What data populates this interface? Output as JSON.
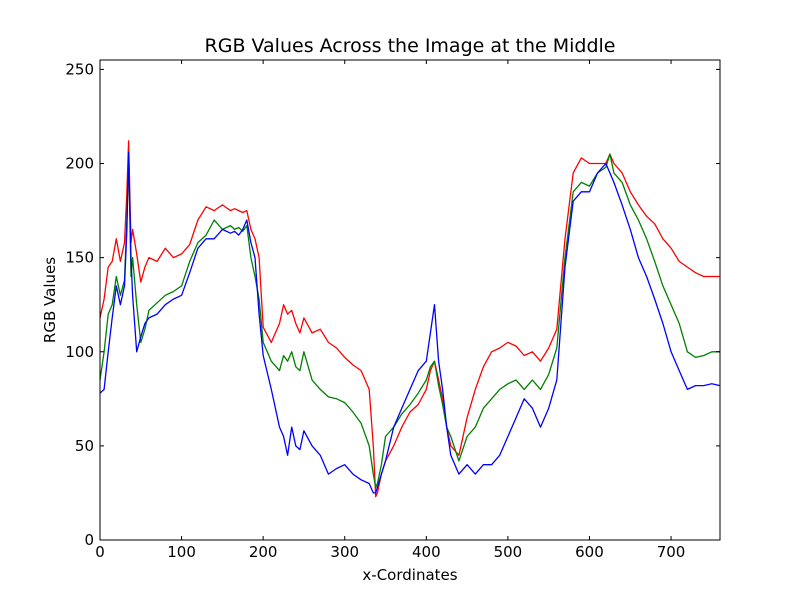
{
  "chart_data": {
    "type": "line",
    "title": "RGB Values Across the Image at the Middle",
    "xlabel": "x-Cordinates",
    "ylabel": "RGB Values",
    "xlim": [
      0,
      760
    ],
    "ylim": [
      0,
      255
    ],
    "xticks": [
      0,
      100,
      200,
      300,
      400,
      500,
      600,
      700
    ],
    "yticks": [
      0,
      50,
      100,
      150,
      200,
      250
    ],
    "grid": false,
    "series": [
      {
        "name": "Red",
        "color": "#ff0000",
        "x": [
          0,
          5,
          10,
          15,
          20,
          25,
          30,
          33,
          35,
          38,
          40,
          45,
          50,
          55,
          60,
          70,
          80,
          90,
          100,
          110,
          120,
          130,
          140,
          150,
          160,
          165,
          170,
          175,
          180,
          185,
          190,
          195,
          200,
          210,
          220,
          225,
          230,
          235,
          240,
          245,
          250,
          260,
          270,
          280,
          290,
          300,
          310,
          320,
          330,
          335,
          338,
          340,
          345,
          350,
          360,
          370,
          380,
          390,
          400,
          405,
          410,
          415,
          420,
          425,
          430,
          440,
          450,
          460,
          470,
          480,
          490,
          500,
          510,
          520,
          530,
          540,
          550,
          560,
          570,
          580,
          590,
          600,
          610,
          620,
          625,
          630,
          640,
          650,
          660,
          670,
          680,
          690,
          700,
          710,
          720,
          730,
          740,
          750,
          760
        ],
        "y": [
          118,
          128,
          145,
          148,
          160,
          148,
          158,
          185,
          212,
          158,
          165,
          152,
          137,
          145,
          150,
          148,
          155,
          150,
          152,
          157,
          170,
          177,
          175,
          178,
          175,
          176,
          175,
          174,
          175,
          165,
          160,
          150,
          113,
          105,
          115,
          125,
          120,
          122,
          115,
          110,
          118,
          110,
          112,
          105,
          102,
          97,
          93,
          90,
          80,
          50,
          23,
          25,
          35,
          42,
          50,
          60,
          68,
          72,
          80,
          90,
          95,
          85,
          75,
          60,
          50,
          45,
          65,
          80,
          92,
          100,
          102,
          105,
          103,
          98,
          100,
          95,
          102,
          112,
          160,
          195,
          203,
          200,
          200,
          200,
          205,
          200,
          195,
          185,
          178,
          172,
          168,
          160,
          155,
          148,
          145,
          142,
          140,
          140,
          140
        ]
      },
      {
        "name": "Green",
        "color": "#008000",
        "x": [
          0,
          5,
          10,
          15,
          20,
          25,
          30,
          33,
          35,
          38,
          40,
          45,
          50,
          55,
          60,
          70,
          80,
          90,
          100,
          110,
          120,
          130,
          140,
          150,
          160,
          165,
          170,
          175,
          180,
          185,
          190,
          195,
          200,
          210,
          220,
          225,
          230,
          235,
          240,
          245,
          250,
          260,
          270,
          280,
          290,
          300,
          310,
          320,
          330,
          335,
          338,
          340,
          345,
          350,
          360,
          370,
          380,
          390,
          400,
          405,
          410,
          415,
          420,
          425,
          430,
          440,
          450,
          460,
          470,
          480,
          490,
          500,
          510,
          520,
          530,
          540,
          550,
          560,
          570,
          580,
          590,
          600,
          610,
          620,
          625,
          630,
          640,
          650,
          660,
          670,
          680,
          690,
          700,
          710,
          720,
          730,
          740,
          750,
          760
        ],
        "y": [
          85,
          100,
          120,
          125,
          140,
          130,
          138,
          170,
          204,
          140,
          150,
          125,
          105,
          112,
          122,
          126,
          130,
          132,
          135,
          148,
          158,
          162,
          170,
          165,
          167,
          165,
          166,
          164,
          167,
          150,
          140,
          128,
          105,
          95,
          90,
          98,
          95,
          100,
          92,
          90,
          100,
          85,
          80,
          76,
          75,
          73,
          68,
          62,
          50,
          35,
          28,
          30,
          40,
          55,
          60,
          67,
          72,
          78,
          85,
          92,
          95,
          82,
          72,
          60,
          55,
          42,
          55,
          60,
          70,
          75,
          80,
          83,
          85,
          80,
          85,
          80,
          88,
          102,
          150,
          185,
          190,
          188,
          195,
          198,
          205,
          195,
          190,
          178,
          170,
          160,
          148,
          135,
          125,
          115,
          100,
          97,
          98,
          100,
          100
        ]
      },
      {
        "name": "Blue",
        "color": "#0000ff",
        "x": [
          0,
          5,
          10,
          15,
          20,
          25,
          30,
          33,
          35,
          38,
          40,
          45,
          50,
          55,
          60,
          70,
          80,
          90,
          100,
          110,
          120,
          130,
          140,
          150,
          160,
          165,
          170,
          175,
          180,
          185,
          190,
          195,
          200,
          210,
          220,
          225,
          230,
          235,
          240,
          245,
          250,
          260,
          270,
          280,
          290,
          300,
          310,
          320,
          330,
          335,
          338,
          340,
          345,
          350,
          360,
          370,
          380,
          390,
          400,
          405,
          410,
          415,
          420,
          425,
          430,
          440,
          450,
          460,
          470,
          480,
          490,
          500,
          510,
          520,
          530,
          540,
          550,
          560,
          570,
          580,
          590,
          600,
          610,
          620,
          625,
          630,
          640,
          650,
          660,
          670,
          680,
          690,
          700,
          710,
          720,
          730,
          740,
          750,
          760
        ],
        "y": [
          78,
          80,
          100,
          118,
          135,
          125,
          135,
          165,
          206,
          150,
          130,
          100,
          108,
          115,
          118,
          120,
          125,
          128,
          130,
          142,
          155,
          160,
          160,
          165,
          163,
          164,
          162,
          165,
          170,
          158,
          150,
          120,
          98,
          80,
          60,
          55,
          45,
          60,
          50,
          48,
          58,
          50,
          45,
          35,
          38,
          40,
          35,
          32,
          30,
          25,
          25,
          28,
          35,
          42,
          60,
          70,
          80,
          90,
          95,
          110,
          125,
          95,
          80,
          60,
          45,
          35,
          40,
          35,
          40,
          40,
          45,
          55,
          65,
          75,
          70,
          60,
          70,
          85,
          145,
          180,
          185,
          185,
          195,
          200,
          195,
          190,
          178,
          165,
          150,
          140,
          128,
          115,
          100,
          90,
          80,
          82,
          82,
          83,
          82
        ]
      }
    ]
  }
}
